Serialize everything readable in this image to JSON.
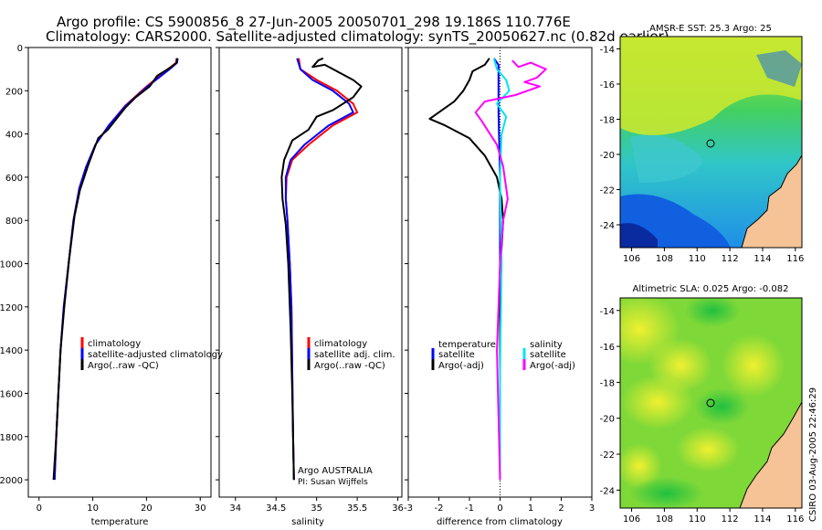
{
  "header": {
    "line1": "Argo profile: CS 5900856_8 27-Jun-2005 20050701_298 19.186S 110.776E",
    "line2": "Climatology: CARS2000. Satellite-adjusted climatology: synTS_20050627.nc (0.82d earlier)"
  },
  "side_label": "CSIRO 03-Aug-2005 22:46:29",
  "colors": {
    "clim": "#ff0000",
    "sat": "#0000ff",
    "argo": "#000000",
    "sal_sat": "#00e5ee",
    "sal_argo": "#ff00ff",
    "land": "#f5c396"
  },
  "chart_data": [
    {
      "type": "line",
      "name": "temperature-profile",
      "xlabel": "temperature",
      "ylabel": "",
      "xlim": [
        -2,
        32
      ],
      "ylim": [
        0,
        2080
      ],
      "y_inverted": true,
      "xticks": [
        0,
        10,
        20,
        30
      ],
      "yticks": [
        0,
        200,
        400,
        600,
        800,
        1000,
        1200,
        1400,
        1600,
        1800,
        2000
      ],
      "legend": [
        "climatology",
        "satellite-adjusted climatology",
        "Argo(..raw -QC)"
      ],
      "series": [
        {
          "name": "climatology",
          "color": "#ff0000",
          "points": [
            [
              25.6,
              50
            ],
            [
              25.5,
              70
            ],
            [
              24,
              100
            ],
            [
              20,
              180
            ],
            [
              16,
              270
            ],
            [
              13,
              360
            ],
            [
              10.5,
              450
            ],
            [
              8.8,
              550
            ],
            [
              7.5,
              650
            ],
            [
              6.4,
              800
            ],
            [
              5.5,
              1000
            ],
            [
              4.6,
              1200
            ],
            [
              4,
              1400
            ],
            [
              3.6,
              1600
            ],
            [
              3.2,
              1800
            ],
            [
              2.9,
              2000
            ]
          ]
        },
        {
          "name": "satellite",
          "color": "#0000ff",
          "points": [
            [
              25.8,
              50
            ],
            [
              25.7,
              70
            ],
            [
              24.3,
              100
            ],
            [
              20.2,
              180
            ],
            [
              16.1,
              270
            ],
            [
              13,
              360
            ],
            [
              10.5,
              450
            ],
            [
              8.8,
              550
            ],
            [
              7.5,
              650
            ],
            [
              6.4,
              800
            ],
            [
              5.5,
              1000
            ],
            [
              4.6,
              1200
            ],
            [
              4,
              1400
            ],
            [
              3.6,
              1600
            ],
            [
              3.2,
              1800
            ],
            [
              2.9,
              2000
            ]
          ]
        },
        {
          "name": "argo",
          "color": "#000000",
          "points": [
            [
              25.7,
              50
            ],
            [
              25.6,
              70
            ],
            [
              24.6,
              90
            ],
            [
              22,
              130
            ],
            [
              20.6,
              180
            ],
            [
              18,
              230
            ],
            [
              16,
              280
            ],
            [
              12.8,
              380
            ],
            [
              11,
              420
            ],
            [
              9.2,
              540
            ],
            [
              7.6,
              660
            ],
            [
              6.6,
              780
            ],
            [
              5.6,
              980
            ],
            [
              4.7,
              1200
            ],
            [
              4,
              1400
            ],
            [
              3.6,
              1600
            ],
            [
              3.2,
              1800
            ],
            [
              2.7,
              2000
            ]
          ]
        }
      ]
    },
    {
      "type": "line",
      "name": "salinity-profile",
      "xlabel": "salinity",
      "ylabel": "",
      "xlim": [
        33.8,
        36.05
      ],
      "ylim": [
        0,
        2080
      ],
      "y_inverted": true,
      "xticks": [
        34,
        34.5,
        35,
        35.5,
        36
      ],
      "yticks": [
        0,
        200,
        400,
        600,
        800,
        1000,
        1200,
        1400,
        1600,
        1800,
        2000
      ],
      "legend": [
        "climatology",
        "satellite adj. clim.",
        "Argo(..raw -QC)"
      ],
      "annotations": [
        "Argo AUSTRALIA",
        "PI: Susan Wijffels"
      ],
      "series": [
        {
          "name": "climatology",
          "color": "#ff0000",
          "points": [
            [
              34.78,
              50
            ],
            [
              34.8,
              100
            ],
            [
              35.0,
              150
            ],
            [
              35.25,
              200
            ],
            [
              35.45,
              260
            ],
            [
              35.5,
              300
            ],
            [
              35.2,
              360
            ],
            [
              34.9,
              450
            ],
            [
              34.7,
              520
            ],
            [
              34.63,
              600
            ],
            [
              34.62,
              700
            ],
            [
              34.64,
              800
            ],
            [
              34.67,
              1000
            ],
            [
              34.69,
              1200
            ],
            [
              34.7,
              1500
            ],
            [
              34.71,
              1800
            ],
            [
              34.72,
              2000
            ]
          ]
        },
        {
          "name": "satellite",
          "color": "#0000ff",
          "points": [
            [
              34.76,
              50
            ],
            [
              34.8,
              100
            ],
            [
              34.95,
              150
            ],
            [
              35.2,
              200
            ],
            [
              35.4,
              260
            ],
            [
              35.45,
              300
            ],
            [
              35.15,
              360
            ],
            [
              34.85,
              450
            ],
            [
              34.68,
              520
            ],
            [
              34.62,
              600
            ],
            [
              34.62,
              700
            ],
            [
              34.64,
              800
            ],
            [
              34.67,
              1000
            ],
            [
              34.69,
              1200
            ],
            [
              34.7,
              1500
            ],
            [
              34.71,
              1800
            ],
            [
              34.72,
              2000
            ]
          ]
        },
        {
          "name": "argo",
          "color": "#000000",
          "points": [
            [
              35.08,
              50
            ],
            [
              35.02,
              60
            ],
            [
              34.95,
              90
            ],
            [
              35.1,
              80
            ],
            [
              35.45,
              150
            ],
            [
              35.55,
              180
            ],
            [
              35.45,
              230
            ],
            [
              35.2,
              290
            ],
            [
              35.0,
              320
            ],
            [
              34.9,
              380
            ],
            [
              34.7,
              430
            ],
            [
              34.6,
              520
            ],
            [
              34.57,
              600
            ],
            [
              34.58,
              700
            ],
            [
              34.62,
              820
            ],
            [
              34.65,
              1000
            ],
            [
              34.68,
              1300
            ],
            [
              34.7,
              1600
            ],
            [
              34.72,
              2000
            ]
          ]
        }
      ]
    },
    {
      "type": "line",
      "name": "difference-profile",
      "xlabel": "difference from climatology",
      "ylabel": "",
      "xlim": [
        -3,
        3
      ],
      "ylim": [
        0,
        2080
      ],
      "y_inverted": true,
      "xticks": [
        -3,
        -2,
        -1,
        0,
        1,
        2,
        3
      ],
      "yticks": [
        0,
        200,
        400,
        600,
        800,
        1000,
        1200,
        1400,
        1600,
        1800,
        2000
      ],
      "legend_left": [
        "temperature",
        "satellite",
        "Argo(-adj)"
      ],
      "legend_right": [
        "salinity",
        "satellite",
        "Argo(-adj)"
      ],
      "series": [
        {
          "name": "temperature-satellite",
          "color": "#0000ff",
          "points": [
            [
              -0.2,
              50
            ],
            [
              -0.05,
              80
            ],
            [
              -0.05,
              150
            ],
            [
              -0.05,
              300
            ],
            [
              0,
              600
            ],
            [
              0,
              2000
            ]
          ]
        },
        {
          "name": "temperature-argo",
          "color": "#000000",
          "points": [
            [
              -0.35,
              50
            ],
            [
              -0.5,
              80
            ],
            [
              -0.9,
              110
            ],
            [
              -1.0,
              150
            ],
            [
              -1.2,
              200
            ],
            [
              -1.5,
              250
            ],
            [
              -2.3,
              330
            ],
            [
              -1.8,
              360
            ],
            [
              -1.0,
              420
            ],
            [
              -0.5,
              500
            ],
            [
              -0.1,
              600
            ],
            [
              0.05,
              700
            ],
            [
              0.1,
              800
            ],
            [
              0.02,
              1000
            ],
            [
              0,
              1200
            ],
            [
              0,
              1600
            ],
            [
              0,
              2000
            ]
          ]
        },
        {
          "name": "salinity-satellite",
          "color": "#00e5ee",
          "points": [
            [
              -0.2,
              50
            ],
            [
              -0.1,
              100
            ],
            [
              0.2,
              150
            ],
            [
              0.3,
              200
            ],
            [
              -0.1,
              260
            ],
            [
              0.2,
              320
            ],
            [
              0.05,
              400
            ],
            [
              0,
              600
            ],
            [
              0.02,
              800
            ],
            [
              0.05,
              1000
            ],
            [
              0.0,
              1500
            ],
            [
              0.0,
              2000
            ]
          ]
        },
        {
          "name": "salinity-argo",
          "color": "#ff00ff",
          "points": [
            [
              0.4,
              60
            ],
            [
              0.6,
              90
            ],
            [
              1.0,
              70
            ],
            [
              1.5,
              100
            ],
            [
              1.2,
              140
            ],
            [
              0.8,
              160
            ],
            [
              1.3,
              180
            ],
            [
              0.5,
              220
            ],
            [
              -0.5,
              250
            ],
            [
              -0.8,
              300
            ],
            [
              -0.6,
              340
            ],
            [
              -0.1,
              450
            ],
            [
              0.1,
              550
            ],
            [
              0.2,
              650
            ],
            [
              0.25,
              700
            ],
            [
              0.1,
              800
            ],
            [
              0.0,
              1000
            ],
            [
              -0.1,
              1400
            ],
            [
              -0.05,
              1700
            ],
            [
              0,
              2000
            ]
          ]
        }
      ]
    },
    {
      "type": "heatmap",
      "name": "sst-map",
      "title": "AMSR-E SST: 25.3 Argo: 25",
      "xlim": [
        105.3,
        116.4
      ],
      "ylim": [
        -25.3,
        -13.3
      ],
      "xticks": [
        106,
        108,
        110,
        112,
        114,
        116
      ],
      "yticks": [
        -14,
        -16,
        -18,
        -20,
        -22,
        -24
      ],
      "marker": {
        "lon": 110.776,
        "lat": -19.186
      }
    },
    {
      "type": "heatmap",
      "name": "sla-map",
      "title": "Altimetric SLA: 0.025 Argo: -0.082",
      "xlim": [
        105.3,
        116.4
      ],
      "ylim": [
        -25.0,
        -13.3
      ],
      "xticks": [
        106,
        108,
        110,
        112,
        114,
        116
      ],
      "yticks": [
        -14,
        -16,
        -18,
        -20,
        -22,
        -24
      ],
      "marker": {
        "lon": 110.776,
        "lat": -19.186
      }
    }
  ]
}
